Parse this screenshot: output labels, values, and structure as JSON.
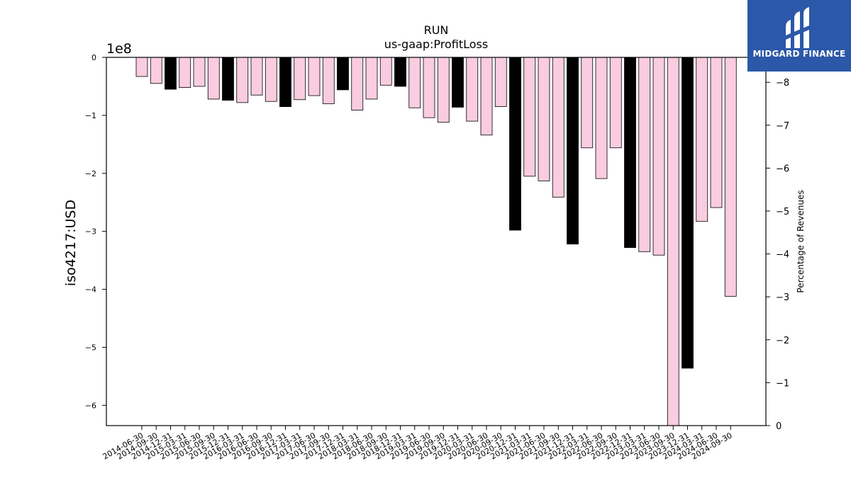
{
  "chart_data": {
    "type": "bar",
    "title": "RUN",
    "subtitle": "us-gaap:ProfitLoss",
    "ylabel": "iso4217:USD",
    "y_scale_label": "1e8",
    "y2label": "Percentage of Revenues",
    "ylim": [
      -6.35,
      0
    ],
    "y_ticks": [
      0,
      -1,
      -2,
      -3,
      -4,
      -5,
      -6
    ],
    "y_tick_labels": [
      "0",
      "−1",
      "−2",
      "−3",
      "−4",
      "−5",
      "−6"
    ],
    "y2_ticks": [
      0,
      -1,
      -2,
      -3,
      -4,
      -5,
      -6,
      -7,
      -8
    ],
    "y2_tick_labels": [
      "0",
      "−1",
      "−2",
      "−3",
      "−4",
      "−5",
      "−6",
      "−7",
      "−8"
    ],
    "categories": [
      "2014-06-30",
      "2014-09-30",
      "2014-12-31",
      "2015-03-31",
      "2015-06-30",
      "2015-09-30",
      "2015-12-31",
      "2016-03-31",
      "2016-06-30",
      "2016-09-30",
      "2016-12-31",
      "2017-03-31",
      "2017-06-30",
      "2017-09-30",
      "2017-12-31",
      "2018-03-31",
      "2018-06-30",
      "2018-09-30",
      "2018-12-31",
      "2019-03-31",
      "2019-06-30",
      "2019-09-30",
      "2019-12-31",
      "2020-03-31",
      "2020-06-30",
      "2020-09-30",
      "2020-12-31",
      "2021-03-31",
      "2021-06-30",
      "2021-09-30",
      "2021-12-31",
      "2022-03-31",
      "2022-06-30",
      "2022-09-30",
      "2022-12-31",
      "2023-03-31",
      "2023-06-30",
      "2023-09-30",
      "2023-12-31",
      "2024-03-31",
      "2024-06-30",
      "2024-09-30"
    ],
    "values": [
      -0.33,
      -0.45,
      -0.55,
      -0.52,
      -0.5,
      -0.72,
      -0.74,
      -0.78,
      -0.65,
      -0.76,
      -0.85,
      -0.73,
      -0.66,
      -0.8,
      -0.56,
      -0.91,
      -0.72,
      -0.48,
      -0.5,
      -0.87,
      -1.04,
      -1.12,
      -0.86,
      -1.1,
      -1.34,
      -0.85,
      -2.98,
      -2.05,
      -2.13,
      -2.41,
      -3.22,
      -1.56,
      -2.09,
      -1.56,
      -3.28,
      -3.35,
      -3.41,
      -6.35,
      -5.36,
      -2.83,
      -2.59,
      -4.12
    ],
    "bar_kind": [
      "q",
      "q",
      "a",
      "q",
      "q",
      "q",
      "a",
      "q",
      "q",
      "q",
      "a",
      "q",
      "q",
      "q",
      "a",
      "q",
      "q",
      "q",
      "a",
      "q",
      "q",
      "q",
      "a",
      "q",
      "q",
      "q",
      "a",
      "q",
      "q",
      "q",
      "a",
      "q",
      "q",
      "q",
      "a",
      "q",
      "q",
      "q",
      "a",
      "q",
      "q",
      "q"
    ],
    "colors": {
      "quarter_fill": "#f9cce0",
      "annual_fill": "#000000",
      "edge": "#000000"
    },
    "grid": false
  },
  "logo": {
    "text": "MIDGARD FINANCE",
    "bg": "#2b58a8"
  }
}
